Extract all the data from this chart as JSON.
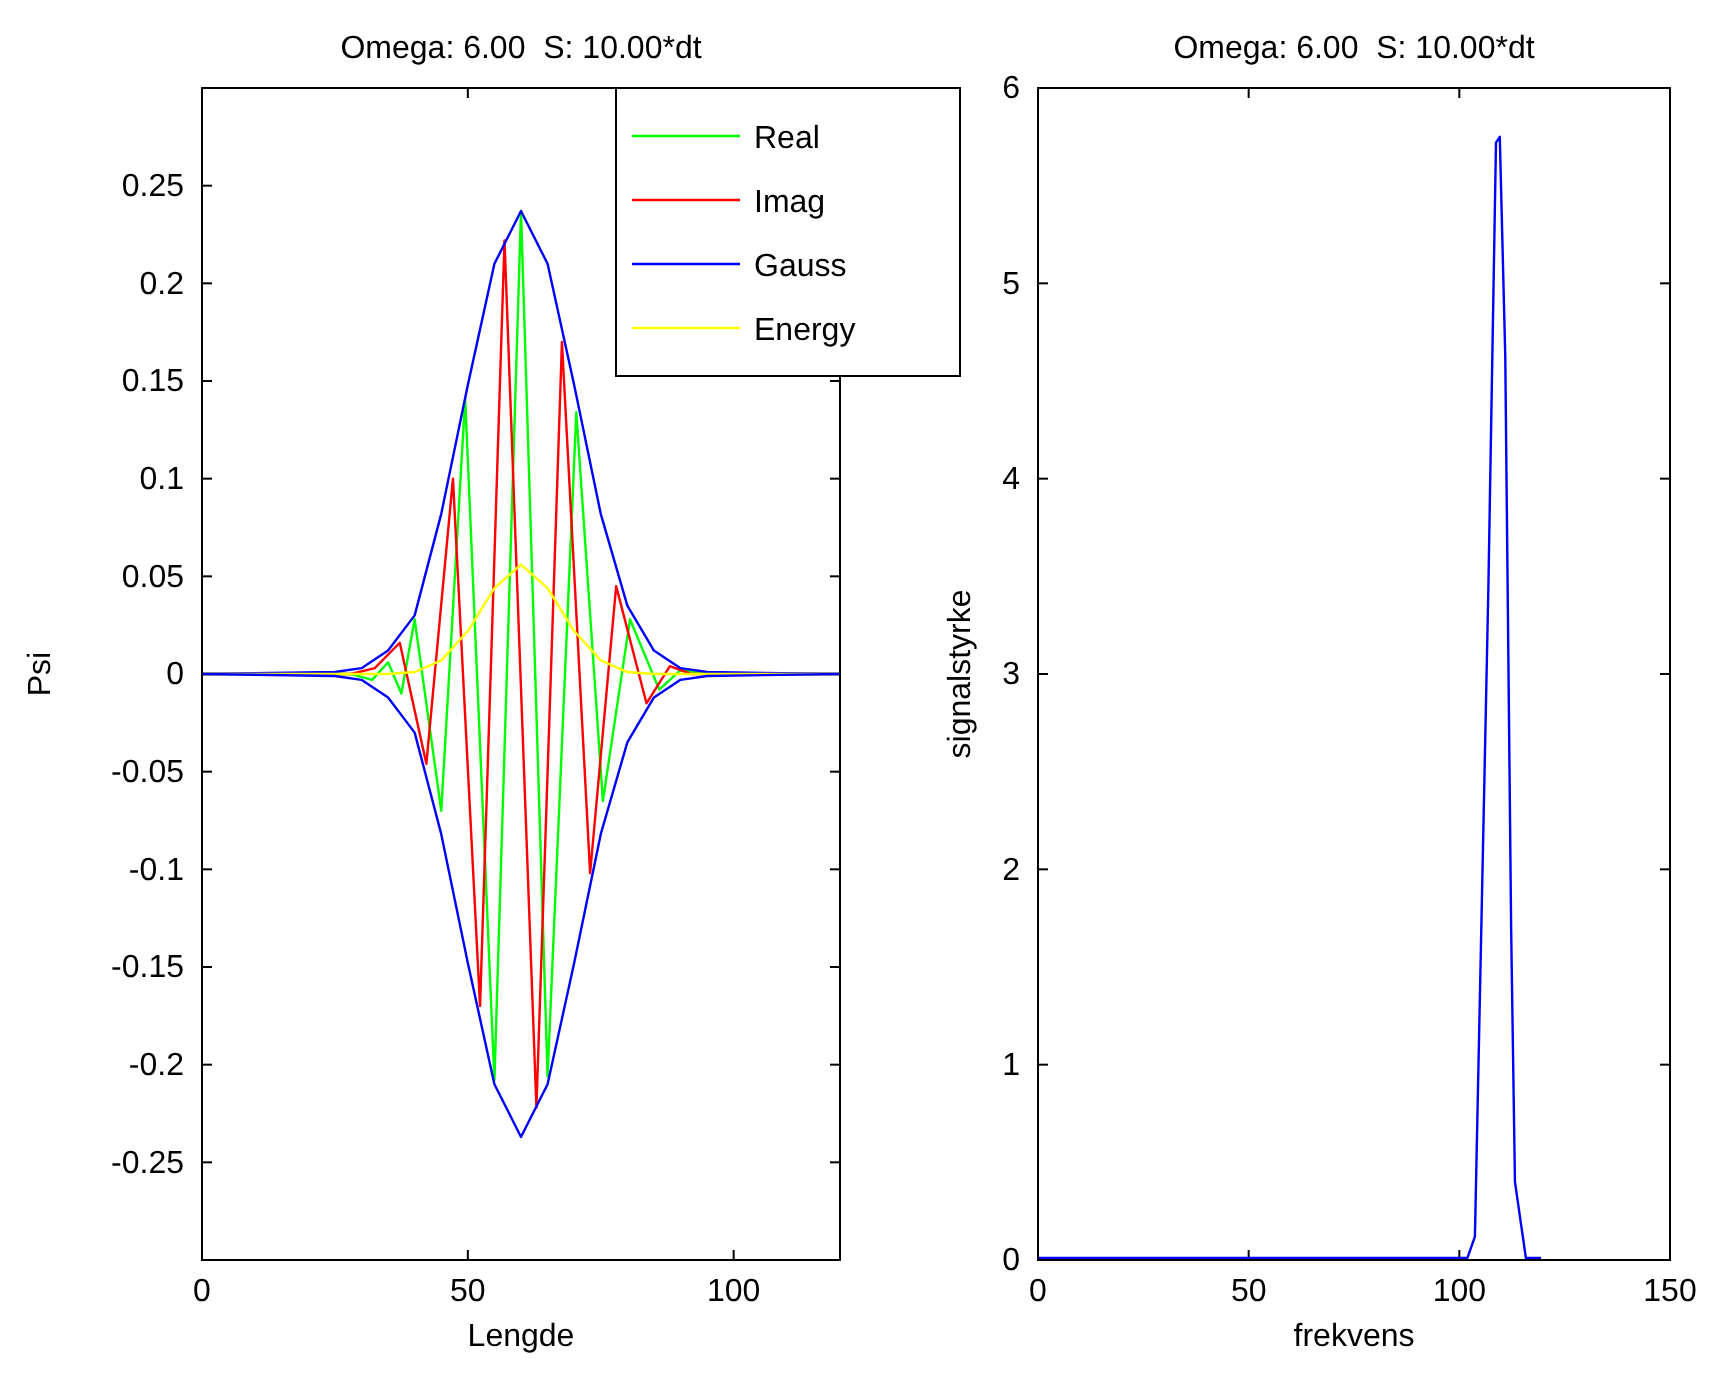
{
  "chart_data": [
    {
      "type": "line",
      "title": "Omega: 6.00  S: 10.00*dt",
      "xlabel": "Lengde",
      "ylabel": "Psi",
      "xlim": [
        0,
        120
      ],
      "ylim": [
        -0.3,
        0.3
      ],
      "xticks": [
        0,
        50,
        100
      ],
      "yticks": [
        -0.25,
        -0.2,
        -0.15,
        -0.1,
        -0.05,
        0,
        0.05,
        0.1,
        0.15,
        0.2,
        0.25
      ],
      "grid": false,
      "legend": "top right",
      "marker": "none",
      "line_style": "solid",
      "series": [
        {
          "name": "Real",
          "color": "#00ff00",
          "x": [
            0,
            28,
            32,
            35,
            37.5,
            40,
            45,
            49.5,
            55,
            60,
            65,
            70.4,
            75.4,
            80.5,
            86,
            90,
            95,
            120
          ],
          "values": [
            0,
            0,
            -0.003,
            0.006,
            -0.01,
            0.028,
            -0.07,
            0.141,
            -0.208,
            0.237,
            -0.206,
            0.134,
            -0.065,
            0.028,
            -0.008,
            0.002,
            0,
            0
          ]
        },
        {
          "name": "Imag",
          "color": "#ff0000",
          "x": [
            0,
            28,
            32.5,
            37.2,
            42.2,
            47.2,
            52.3,
            56.9,
            62.9,
            67.7,
            73,
            77.9,
            83.6,
            88,
            92,
            120
          ],
          "values": [
            0,
            0,
            0.003,
            0.016,
            -0.046,
            0.1,
            -0.17,
            0.222,
            -0.222,
            0.17,
            -0.102,
            0.045,
            -0.015,
            0.004,
            0,
            0
          ]
        },
        {
          "name": "Gauss",
          "color": "#0000ff",
          "x": [
            0,
            25,
            30,
            35,
            40,
            45,
            50,
            55,
            60,
            65,
            70,
            75,
            80,
            85,
            90,
            95,
            120
          ],
          "values": [
            0,
            0.001,
            0.003,
            0.012,
            0.03,
            0.082,
            0.148,
            0.21,
            0.237,
            0.21,
            0.148,
            0.082,
            0.035,
            0.012,
            0.003,
            0.001,
            0
          ]
        },
        {
          "name": "Energy",
          "color": "#ffff00",
          "x": [
            0,
            35,
            40,
            45,
            50,
            55,
            60,
            65,
            70,
            75,
            80,
            85,
            120
          ],
          "values": [
            0,
            0,
            0.001,
            0.007,
            0.022,
            0.044,
            0.056,
            0.044,
            0.022,
            0.007,
            0.001,
            0,
            0
          ]
        },
        {
          "color": "#0000ff",
          "x": [
            0,
            25,
            30,
            35,
            40,
            45,
            50,
            55,
            60,
            65,
            70,
            75,
            80,
            85,
            90,
            95,
            120
          ],
          "values": [
            0,
            -0.001,
            -0.003,
            -0.012,
            -0.03,
            -0.082,
            -0.148,
            -0.21,
            -0.237,
            -0.21,
            -0.148,
            -0.082,
            -0.035,
            -0.012,
            -0.003,
            -0.001,
            0
          ]
        }
      ]
    },
    {
      "type": "line",
      "title": "Omega: 6.00  S: 10.00*dt",
      "xlabel": "frekvens",
      "ylabel": "signalstyrke",
      "xlim": [
        0,
        150
      ],
      "ylim": [
        0,
        6
      ],
      "xticks": [
        0,
        50,
        100,
        150
      ],
      "yticks": [
        0,
        1,
        2,
        3,
        4,
        5,
        6
      ],
      "grid": false,
      "legend": false,
      "marker": "none",
      "line_style": "solid",
      "series": [
        {
          "color": "#0000ff",
          "x": [
            0,
            101.9,
            103.7,
            106.9,
            108.7,
            109.6,
            110.9,
            112.3,
            113.2,
            115.8,
            119.4
          ],
          "values": [
            0.01,
            0.01,
            0.12,
            3.45,
            5.72,
            5.75,
            4.63,
            1.69,
            0.4,
            0.01,
            0.01
          ]
        }
      ]
    }
  ]
}
